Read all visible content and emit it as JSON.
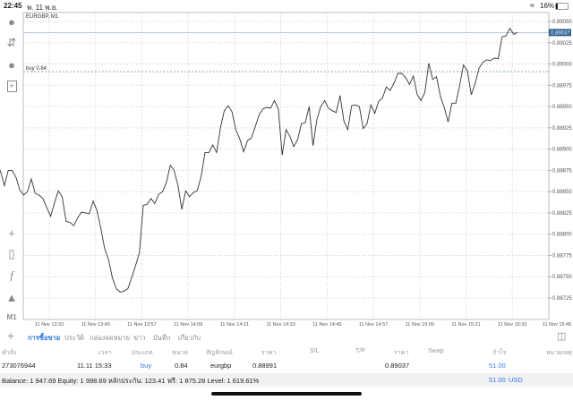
{
  "status_bar": {
    "time": "22:45",
    "date": "พ. 11 พ.ย.",
    "battery": "16%",
    "battery_level": 0.16
  },
  "toolbar_left": {
    "icons": [
      "account-icon",
      "trade-arrows-icon",
      "chat-icon",
      "new-order-icon"
    ],
    "bottom_icons": [
      "crosshair-icon",
      "chart-type-icon",
      "indicator-icon",
      "objects-icon"
    ],
    "timeframe": "M1"
  },
  "chart": {
    "symbol_label": "EURGBP, M1",
    "order_line_label": "buy 0.84",
    "current_price_label": "0.89037",
    "colors": {
      "line": "#333333",
      "current_price": "#2e5f93",
      "order_line": "#7fb27f",
      "grid": "#d9d9d9"
    }
  },
  "chart_data": {
    "type": "line",
    "title": "EURGBP, M1",
    "ylim": [
      0.88715,
      0.8906
    ],
    "y_ticks": [
      "0.89050",
      "0.89025",
      "0.89000",
      "0.88975",
      "0.88950",
      "0.88925",
      "0.88900",
      "0.88875",
      "0.88850",
      "0.88825",
      "0.88800",
      "0.88775",
      "0.88750",
      "0.88725"
    ],
    "x_ticks": [
      "11 Nov 13:33",
      "11 Nov 13:45",
      "11 Nov 13:57",
      "11 Nov 14:09",
      "11 Nov 14:21",
      "11 Nov 14:33",
      "11 Nov 14:45",
      "11 Nov 14:57",
      "11 Nov 15:09",
      "11 Nov 15:21",
      "11 Nov 15:33",
      "11 Nov 15:45"
    ],
    "grid": true,
    "horizontal_lines": [
      {
        "label": "buy 0.84",
        "value": 0.88991,
        "style": "dashed"
      },
      {
        "label": "0.89037",
        "value": 0.89037,
        "style": "solid"
      }
    ],
    "x": [
      "13:26",
      "13:27",
      "13:28",
      "13:29",
      "13:30",
      "13:31",
      "13:32",
      "13:33",
      "13:34",
      "13:35",
      "13:36",
      "13:37",
      "13:38",
      "13:39",
      "13:40",
      "13:41",
      "13:42",
      "13:43",
      "13:44",
      "13:45",
      "13:46",
      "13:47",
      "13:48",
      "13:49",
      "13:50",
      "13:51",
      "13:52",
      "13:53",
      "13:54",
      "13:55",
      "13:56",
      "13:57",
      "13:58",
      "13:59",
      "14:00",
      "14:01",
      "14:02",
      "14:03",
      "14:04",
      "14:05",
      "14:06",
      "14:07",
      "14:08",
      "14:09",
      "14:10",
      "14:11",
      "14:12",
      "14:13",
      "14:14",
      "14:15",
      "14:16",
      "14:17",
      "14:18",
      "14:19",
      "14:20",
      "14:21",
      "14:22",
      "14:23",
      "14:24",
      "14:25",
      "14:26",
      "14:27",
      "14:28",
      "14:29",
      "14:30",
      "14:31",
      "14:32",
      "14:33",
      "14:34",
      "14:35",
      "14:36",
      "14:37",
      "14:38",
      "14:39",
      "14:40",
      "14:41",
      "14:42",
      "14:43",
      "14:44",
      "14:45",
      "14:46",
      "14:47",
      "14:48",
      "14:49",
      "14:50",
      "14:51",
      "14:52",
      "14:53",
      "14:54",
      "14:55",
      "14:56",
      "14:57",
      "14:58",
      "14:59",
      "15:00",
      "15:01",
      "15:02",
      "15:03",
      "15:04",
      "15:05",
      "15:06",
      "15:07",
      "15:08",
      "15:09",
      "15:10",
      "15:11",
      "15:12",
      "15:13",
      "15:14",
      "15:15",
      "15:16",
      "15:17",
      "15:18",
      "15:19",
      "15:20",
      "15:21",
      "15:22",
      "15:23",
      "15:24",
      "15:25",
      "15:26",
      "15:27",
      "15:28",
      "15:29",
      "15:30",
      "15:31",
      "15:32",
      "15:33",
      "15:34",
      "15:35",
      "15:36",
      "15:37",
      "15:38",
      "15:39",
      "15:40",
      "15:41"
    ],
    "values": [
      0.88883,
      0.88874,
      0.88857,
      0.88875,
      0.88875,
      0.88867,
      0.88852,
      0.88846,
      0.8885,
      0.88865,
      0.88848,
      0.88846,
      0.88842,
      0.88831,
      0.88821,
      0.88837,
      0.88851,
      0.88844,
      0.88815,
      0.88814,
      0.8881,
      0.88819,
      0.88826,
      0.88825,
      0.88824,
      0.88839,
      0.88828,
      0.88807,
      0.88783,
      0.8877,
      0.88749,
      0.88736,
      0.88732,
      0.88733,
      0.88736,
      0.88749,
      0.88763,
      0.88778,
      0.88834,
      0.88835,
      0.88842,
      0.88836,
      0.88847,
      0.8885,
      0.88861,
      0.88881,
      0.88875,
      0.88857,
      0.88829,
      0.88851,
      0.88844,
      0.88849,
      0.88851,
      0.88868,
      0.88896,
      0.88896,
      0.88905,
      0.88896,
      0.88925,
      0.88945,
      0.88951,
      0.88944,
      0.88923,
      0.88912,
      0.88897,
      0.8891,
      0.88913,
      0.88926,
      0.8894,
      0.88947,
      0.88949,
      0.88948,
      0.88957,
      0.88947,
      0.88893,
      0.88923,
      0.88915,
      0.88903,
      0.88911,
      0.8893,
      0.88931,
      0.8895,
      0.88904,
      0.88935,
      0.8895,
      0.88957,
      0.88948,
      0.88945,
      0.88943,
      0.88963,
      0.88933,
      0.88923,
      0.88951,
      0.88952,
      0.8895,
      0.88924,
      0.8893,
      0.88952,
      0.88942,
      0.88956,
      0.8896,
      0.88973,
      0.88969,
      0.88978,
      0.88989,
      0.88989,
      0.88984,
      0.88976,
      0.88986,
      0.88964,
      0.88957,
      0.88967,
      0.89001,
      0.88982,
      0.88985,
      0.88962,
      0.88949,
      0.88932,
      0.88954,
      0.88954,
      0.88975,
      0.88999,
      0.88992,
      0.88964,
      0.88977,
      0.88995,
      0.89002,
      0.89005,
      0.89004,
      0.89007,
      0.89006,
      0.89032,
      0.89033,
      0.89042,
      0.89035,
      0.89037
    ]
  },
  "tabs": [
    {
      "label": "การซื้อขาย",
      "active": true
    },
    {
      "label": "ประวัติ"
    },
    {
      "label": "กล่องจดหมาย"
    },
    {
      "label": "ข่าว"
    },
    {
      "label": "บันทึก"
    },
    {
      "label": "เกี่ยวกับ"
    }
  ],
  "table": {
    "headers": [
      "คำสั่ง",
      "เวลา",
      "ประเภท",
      "ขนาด",
      "สัญลักษณ์",
      "ราคา",
      "S/L",
      "T/P",
      "ราคา",
      "Swap",
      "กำไร",
      "หมายเหตุ"
    ],
    "rows": [
      {
        "order": "273076944",
        "time": "11.11 15:33",
        "type": "buy",
        "size": "0.84",
        "symbol": "eurgbp",
        "open_price": "0.88991",
        "sl": "",
        "tp": "",
        "price": "0.89037",
        "swap": "",
        "profit": "51.00",
        "comment": ""
      }
    ]
  },
  "summary": {
    "text": "Balance: 1 947.69 Equity: 1 998.69 หลักประกัน: 123.41 ฟรี: 1 875.28 Level: 1 619.61%",
    "profit": "51.00",
    "currency": "USD"
  }
}
